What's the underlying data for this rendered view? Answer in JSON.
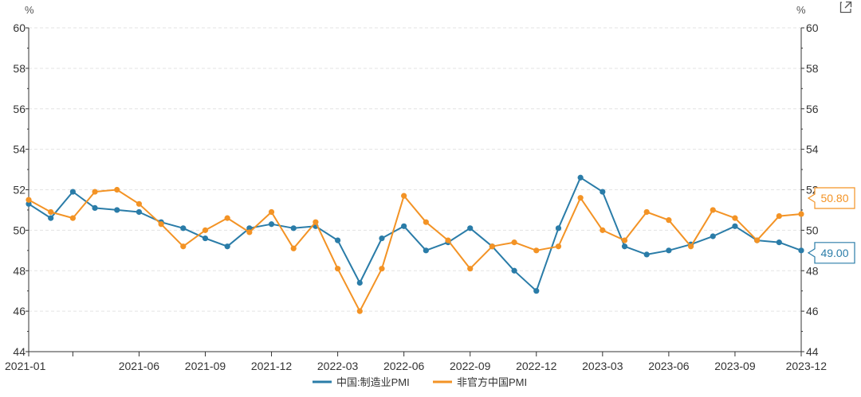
{
  "ui": {
    "expand_icon": "external-link-icon"
  },
  "colors": {
    "series_1": "#2a7ca8",
    "series_2": "#f39325",
    "grid": "#e3e3e3",
    "axis": "#333333"
  },
  "chart_data": {
    "type": "line",
    "title": "",
    "xlabel": "",
    "ylabel_left": "%",
    "ylabel_right": "%",
    "ylim": [
      44,
      60
    ],
    "yticks": [
      44,
      46,
      48,
      50,
      52,
      54,
      56,
      58,
      60
    ],
    "x": [
      "2021-01",
      "2021-02",
      "2021-03",
      "2021-04",
      "2021-05",
      "2021-06",
      "2021-07",
      "2021-08",
      "2021-09",
      "2021-10",
      "2021-11",
      "2021-12",
      "2022-01",
      "2022-02",
      "2022-03",
      "2022-04",
      "2022-05",
      "2022-06",
      "2022-07",
      "2022-08",
      "2022-09",
      "2022-10",
      "2022-11",
      "2022-12",
      "2023-01",
      "2023-02",
      "2023-03",
      "2023-04",
      "2023-05",
      "2023-06",
      "2023-07",
      "2023-08",
      "2023-09",
      "2023-10",
      "2023-11",
      "2023-12"
    ],
    "xtick_labels": [
      "2021-01",
      "2021-06",
      "2021-09",
      "2021-12",
      "2022-03",
      "2022-06",
      "2022-09",
      "2022-12",
      "2023-03",
      "2023-06",
      "2023-09",
      "2023-12"
    ],
    "grid": true,
    "legend_position": "bottom-center",
    "series": [
      {
        "name": "中国:制造业PMI",
        "color": "#2a7ca8",
        "values": [
          51.3,
          50.6,
          51.9,
          51.1,
          51.0,
          50.9,
          50.4,
          50.1,
          49.6,
          49.2,
          50.1,
          50.3,
          50.1,
          50.2,
          49.5,
          47.4,
          49.6,
          50.2,
          49.0,
          49.4,
          50.1,
          49.2,
          48.0,
          47.0,
          50.1,
          52.6,
          51.9,
          49.2,
          48.8,
          49.0,
          49.3,
          49.7,
          50.2,
          49.5,
          49.4,
          49.0
        ],
        "end_label": "49.00"
      },
      {
        "name": "非官方中国PMI",
        "color": "#f39325",
        "values": [
          51.5,
          50.9,
          50.6,
          51.9,
          52.0,
          51.3,
          50.3,
          49.2,
          50.0,
          50.6,
          49.9,
          50.9,
          49.1,
          50.4,
          48.1,
          46.0,
          48.1,
          51.7,
          50.4,
          49.5,
          48.1,
          49.2,
          49.4,
          49.0,
          49.2,
          51.6,
          50.0,
          49.5,
          50.9,
          50.5,
          49.2,
          51.0,
          50.6,
          49.5,
          50.7,
          50.8
        ],
        "end_label": "50.80"
      }
    ]
  }
}
